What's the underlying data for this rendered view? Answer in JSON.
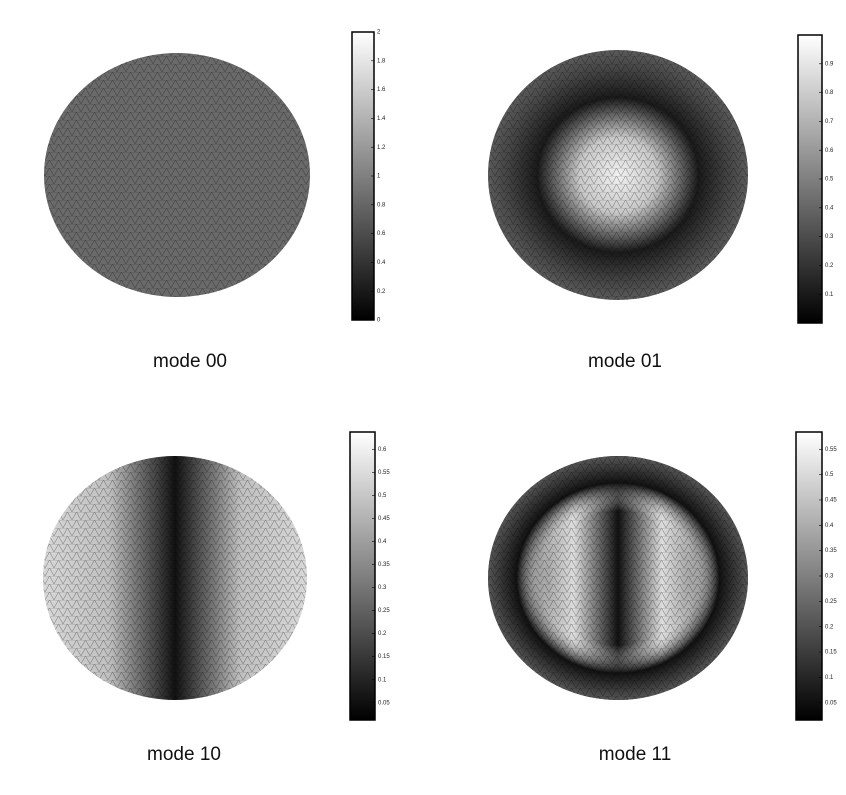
{
  "panels": [
    {
      "label": "mode 00",
      "colorbar_ticks": [
        "2",
        "1.8",
        "1.6",
        "1.4",
        "1.2",
        "1",
        "0.8",
        "0.6",
        "0.4",
        "0.2",
        "0"
      ]
    },
    {
      "label": "mode 01",
      "colorbar_ticks": [
        "0.9",
        "0.8",
        "0.7",
        "0.6",
        "0.5",
        "0.4",
        "0.3",
        "0.2",
        "0.1"
      ]
    },
    {
      "label": "mode 10",
      "colorbar_ticks": [
        "0.6",
        "0.55",
        "0.5",
        "0.45",
        "0.4",
        "0.35",
        "0.3",
        "0.25",
        "0.2",
        "0.15",
        "0.1",
        "0.05"
      ]
    },
    {
      "label": "mode 11",
      "colorbar_ticks": [
        "0.55",
        "0.5",
        "0.45",
        "0.4",
        "0.35",
        "0.3",
        "0.25",
        "0.2",
        "0.15",
        "0.1",
        "0.05"
      ]
    }
  ]
}
